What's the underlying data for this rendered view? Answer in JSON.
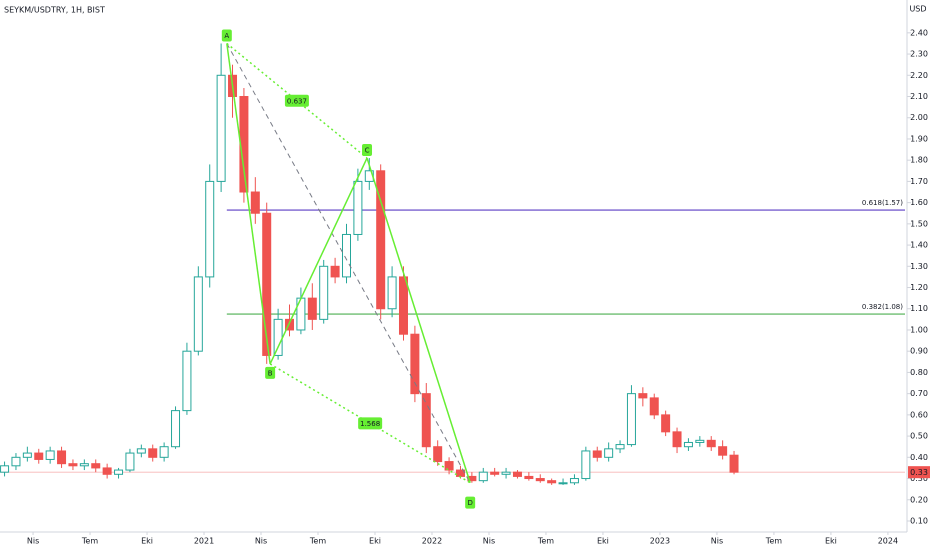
{
  "chart_data": {
    "type": "candlestick",
    "title": "SEYKM/USDTRY, 1H, BIST",
    "y_axis_label": "USD",
    "up_color": "#26a69a",
    "down_color": "#ef5350",
    "grid": false,
    "xlim": [
      -5.8,
      153
    ],
    "ylim": [
      0.05,
      2.55
    ],
    "xticks": [
      {
        "value": 0,
        "label": "Nis"
      },
      {
        "value": 10,
        "label": "Tem"
      },
      {
        "value": 20,
        "label": "Eki"
      },
      {
        "value": 30,
        "label": "2021"
      },
      {
        "value": 40,
        "label": "Nis"
      },
      {
        "value": 50,
        "label": "Tem"
      },
      {
        "value": 60,
        "label": "Eki"
      },
      {
        "value": 70,
        "label": "2022"
      },
      {
        "value": 80,
        "label": "Nis"
      },
      {
        "value": 90,
        "label": "Tem"
      },
      {
        "value": 100,
        "label": "Eki"
      },
      {
        "value": 110,
        "label": "2023"
      },
      {
        "value": 120,
        "label": "Nis"
      },
      {
        "value": 130,
        "label": "Tem"
      },
      {
        "value": 140,
        "label": "Eki"
      },
      {
        "value": 150,
        "label": "2024"
      }
    ],
    "yticks": [
      {
        "value": 0.1,
        "label": "0.10"
      },
      {
        "value": 0.2,
        "label": "0.20"
      },
      {
        "value": 0.3,
        "label": "0.30"
      },
      {
        "value": 0.4,
        "label": "0.40"
      },
      {
        "value": 0.5,
        "label": "0.50"
      },
      {
        "value": 0.6,
        "label": "0.60"
      },
      {
        "value": 0.7,
        "label": "0.70"
      },
      {
        "value": 0.8,
        "label": "0.80"
      },
      {
        "value": 0.9,
        "label": "0.90"
      },
      {
        "value": 1.0,
        "label": "1.00"
      },
      {
        "value": 1.1,
        "label": "1.10"
      },
      {
        "value": 1.2,
        "label": "1.20"
      },
      {
        "value": 1.3,
        "label": "1.30"
      },
      {
        "value": 1.4,
        "label": "1.40"
      },
      {
        "value": 1.5,
        "label": "1.50"
      },
      {
        "value": 1.6,
        "label": "1.60"
      },
      {
        "value": 1.7,
        "label": "1.70"
      },
      {
        "value": 1.8,
        "label": "1.80"
      },
      {
        "value": 1.9,
        "label": "1.90"
      },
      {
        "value": 2.0,
        "label": "2.00"
      },
      {
        "value": 2.1,
        "label": "2.10"
      },
      {
        "value": 2.2,
        "label": "2.20"
      },
      {
        "value": 2.3,
        "label": "2.30"
      },
      {
        "value": 2.4,
        "label": "2.40"
      }
    ],
    "x": [
      -5,
      -3,
      -1,
      1,
      3,
      5,
      7,
      9,
      11,
      13,
      15,
      17,
      19,
      21,
      23,
      25,
      27,
      29,
      31,
      33,
      35,
      37,
      39,
      41,
      43,
      45,
      47,
      49,
      51,
      53,
      55,
      57,
      59,
      61,
      63,
      65,
      67,
      69,
      71,
      73,
      75,
      77,
      79,
      81,
      83,
      85,
      87,
      89,
      91,
      93,
      95,
      97,
      99,
      101,
      103,
      105,
      107,
      109,
      111,
      113,
      115,
      117,
      119,
      121,
      123
    ],
    "open": [
      0.33,
      0.36,
      0.4,
      0.42,
      0.39,
      0.43,
      0.37,
      0.36,
      0.37,
      0.35,
      0.32,
      0.34,
      0.42,
      0.44,
      0.4,
      0.45,
      0.62,
      0.9,
      1.25,
      1.7,
      2.2,
      2.1,
      1.65,
      1.55,
      0.88,
      1.05,
      1.0,
      1.15,
      1.05,
      1.3,
      1.25,
      1.45,
      1.7,
      1.75,
      1.1,
      1.25,
      0.98,
      0.7,
      0.45,
      0.38,
      0.34,
      0.31,
      0.29,
      0.33,
      0.32,
      0.33,
      0.31,
      0.3,
      0.29,
      0.28,
      0.28,
      0.3,
      0.43,
      0.4,
      0.44,
      0.46,
      0.7,
      0.68,
      0.6,
      0.52,
      0.45,
      0.47,
      0.48,
      0.45,
      0.41
    ],
    "high": [
      0.38,
      0.42,
      0.45,
      0.44,
      0.45,
      0.45,
      0.39,
      0.39,
      0.39,
      0.37,
      0.35,
      0.44,
      0.46,
      0.46,
      0.47,
      0.64,
      0.94,
      1.3,
      1.78,
      2.35,
      2.25,
      2.14,
      1.72,
      1.6,
      1.1,
      1.12,
      1.2,
      1.22,
      1.33,
      1.34,
      1.5,
      1.76,
      1.81,
      1.78,
      1.3,
      1.3,
      1.02,
      0.75,
      0.48,
      0.4,
      0.36,
      0.33,
      0.35,
      0.35,
      0.35,
      0.34,
      0.33,
      0.32,
      0.3,
      0.3,
      0.32,
      0.45,
      0.45,
      0.47,
      0.48,
      0.74,
      0.73,
      0.7,
      0.62,
      0.54,
      0.49,
      0.5,
      0.5,
      0.48,
      0.43
    ],
    "low": [
      0.31,
      0.34,
      0.38,
      0.37,
      0.37,
      0.35,
      0.34,
      0.34,
      0.33,
      0.3,
      0.3,
      0.33,
      0.4,
      0.38,
      0.38,
      0.44,
      0.6,
      0.88,
      1.2,
      1.65,
      2.0,
      1.6,
      1.5,
      0.84,
      0.86,
      0.97,
      0.98,
      1.0,
      1.03,
      1.22,
      1.22,
      1.42,
      1.66,
      1.05,
      1.06,
      0.95,
      0.66,
      0.42,
      0.36,
      0.32,
      0.3,
      0.28,
      0.28,
      0.31,
      0.3,
      0.3,
      0.29,
      0.28,
      0.27,
      0.27,
      0.27,
      0.29,
      0.38,
      0.38,
      0.42,
      0.45,
      0.64,
      0.58,
      0.5,
      0.42,
      0.43,
      0.45,
      0.43,
      0.39,
      0.32
    ],
    "close": [
      0.36,
      0.4,
      0.42,
      0.39,
      0.43,
      0.37,
      0.36,
      0.37,
      0.35,
      0.32,
      0.34,
      0.42,
      0.44,
      0.4,
      0.45,
      0.62,
      0.9,
      1.25,
      1.7,
      2.2,
      2.1,
      1.65,
      1.55,
      0.88,
      1.05,
      1.0,
      1.15,
      1.05,
      1.3,
      1.25,
      1.45,
      1.7,
      1.75,
      1.1,
      1.25,
      0.98,
      0.7,
      0.45,
      0.38,
      0.34,
      0.31,
      0.29,
      0.33,
      0.32,
      0.33,
      0.31,
      0.3,
      0.29,
      0.28,
      0.28,
      0.3,
      0.43,
      0.4,
      0.44,
      0.46,
      0.7,
      0.68,
      0.6,
      0.52,
      0.45,
      0.47,
      0.48,
      0.45,
      0.41,
      0.33
    ],
    "levels": [
      {
        "label": "0.618(1.57)",
        "value": 1.565,
        "color": "#5b3cc4",
        "start": 34
      },
      {
        "label": "0.382(1.08)",
        "value": 1.075,
        "color": "#4caf50",
        "start": 34
      }
    ],
    "last_price": 0.33,
    "last_price_color": "#ef5350",
    "pattern": {
      "color": "#66ee33",
      "points": [
        {
          "label": "A",
          "x": 34,
          "y": 2.35
        },
        {
          "label": "B",
          "x": 41.6,
          "y": 0.84
        },
        {
          "label": "C",
          "x": 58.6,
          "y": 1.81
        },
        {
          "label": "D",
          "x": 76.7,
          "y": 0.28
        }
      ],
      "ratios": [
        0.637,
        1.568
      ]
    }
  }
}
